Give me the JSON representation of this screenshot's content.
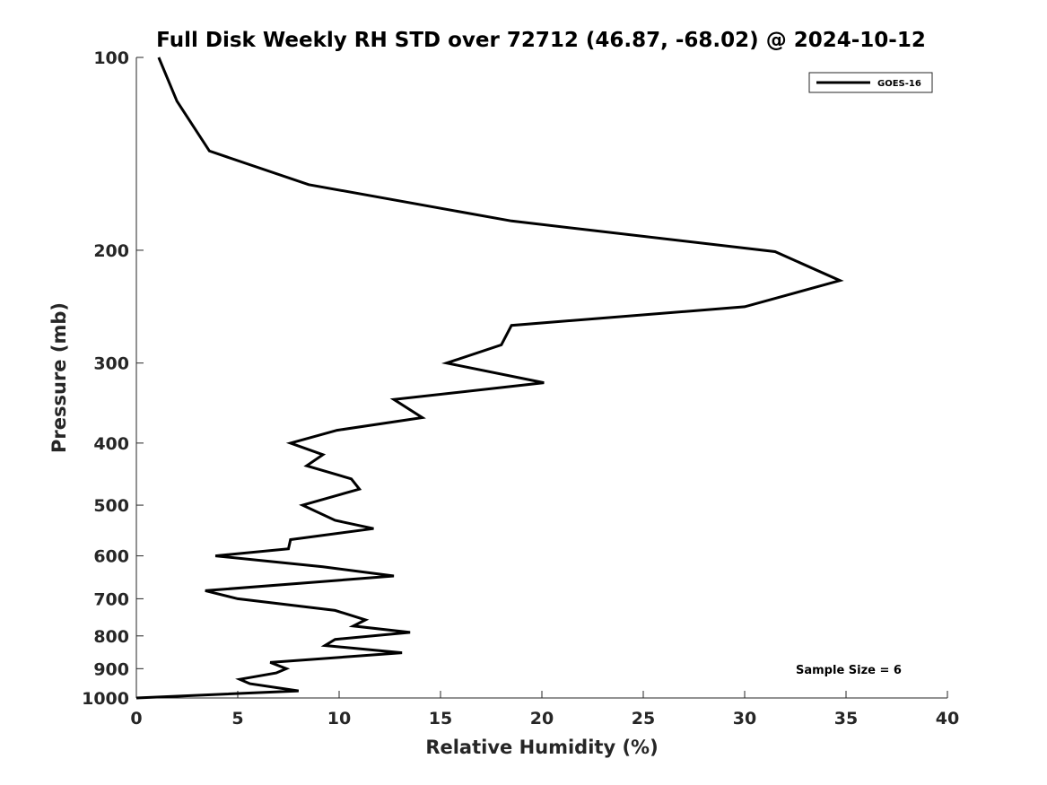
{
  "chart_data": {
    "type": "line",
    "title": "Full Disk Weekly RH STD over 72712 (46.87, -68.02) @ 2024-10-12",
    "xlabel": "Relative Humidity (%)",
    "ylabel": "Pressure (mb)",
    "xlim": [
      0,
      40
    ],
    "ylim": [
      100,
      1000
    ],
    "y_scale": "log",
    "y_reversed": true,
    "x_ticks": [
      "0",
      "5",
      "10",
      "15",
      "20",
      "25",
      "30",
      "35",
      "40"
    ],
    "y_ticks": [
      "100",
      "200",
      "300",
      "400",
      "500",
      "600",
      "700",
      "800",
      "900",
      "1000"
    ],
    "grid": false,
    "legend_position": "top-right",
    "annotation": "Sample Size = 6",
    "series": [
      {
        "name": "GOES-16",
        "color": "#000000",
        "x": [
          1.1,
          2.0,
          3.6,
          8.5,
          18.5,
          31.5,
          34.7,
          30.0,
          18.5,
          18.0,
          15.3,
          20.1,
          12.7,
          14.1,
          9.9,
          7.6,
          9.2,
          8.4,
          10.6,
          11.0,
          8.2,
          9.8,
          11.7,
          7.6,
          7.5,
          3.9,
          9.2,
          12.7,
          3.4,
          5.0,
          9.8,
          11.3,
          10.7,
          13.5,
          9.8,
          9.3,
          13.1,
          6.6,
          7.4,
          6.9,
          5.1,
          5.6,
          8.0,
          0.0
        ],
        "y": [
          100,
          117,
          140,
          158,
          180,
          201,
          223,
          245,
          262,
          281,
          300,
          322,
          342,
          365,
          382,
          400,
          417,
          434,
          455,
          472,
          500,
          528,
          544,
          566,
          585,
          600,
          624,
          645,
          680,
          700,
          730,
          755,
          772,
          790,
          810,
          828,
          850,
          880,
          900,
          914,
          935,
          950,
          975,
          1000
        ]
      }
    ]
  }
}
